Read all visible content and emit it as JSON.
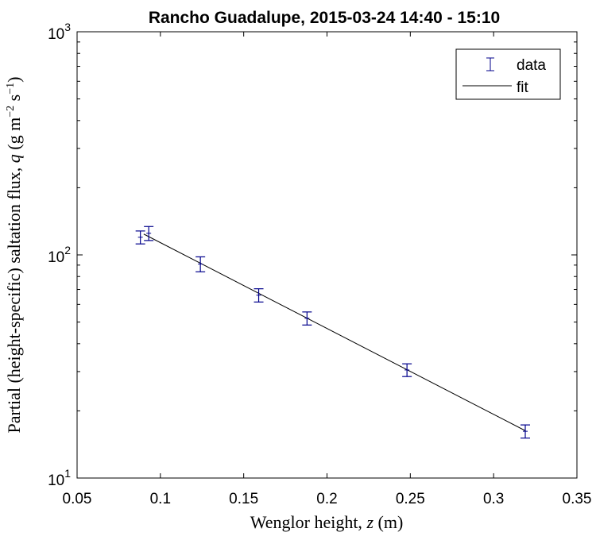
{
  "chart_data": {
    "type": "scatter",
    "title": "Rancho Guadalupe, 2015-03-24 14:40 - 15:10",
    "xlabel_prefix": "Wenglor height, ",
    "xlabel_var": "z",
    "xlabel_unit": " (m)",
    "ylabel_prefix": "Partial (height-specific) saltation flux, ",
    "ylabel_var": "q",
    "ylabel_unit_open": " (g m",
    "ylabel_exp1": "−2",
    "ylabel_mid": " s",
    "ylabel_exp2": "−1",
    "ylabel_close": ")",
    "xlim": [
      0.05,
      0.35
    ],
    "ylim": [
      10,
      1000
    ],
    "yscale": "log",
    "xticks": [
      0.05,
      0.1,
      0.15,
      0.2,
      0.25,
      0.3,
      0.35
    ],
    "xtick_labels": [
      "0.05",
      "0.1",
      "0.15",
      "0.2",
      "0.25",
      "0.3",
      "0.35"
    ],
    "ytick_labels": [
      {
        "value": 10,
        "base": "10",
        "exp": "1"
      },
      {
        "value": 100,
        "base": "10",
        "exp": "2"
      },
      {
        "value": 1000,
        "base": "10",
        "exp": "3"
      }
    ],
    "grid": false,
    "legend_position": "top-right",
    "series": [
      {
        "name": "data",
        "kind": "errorbar",
        "color": "#00008b",
        "x": [
          0.088,
          0.093,
          0.124,
          0.159,
          0.188,
          0.248,
          0.319
        ],
        "y": [
          120,
          125,
          91,
          66,
          52,
          30.5,
          16.2
        ],
        "err": [
          8,
          9,
          7,
          4.5,
          3.5,
          2,
          1.1
        ]
      },
      {
        "name": "fit",
        "kind": "line",
        "color": "#000000",
        "x": [
          0.09,
          0.319
        ],
        "y": [
          124,
          16.3
        ]
      }
    ]
  }
}
